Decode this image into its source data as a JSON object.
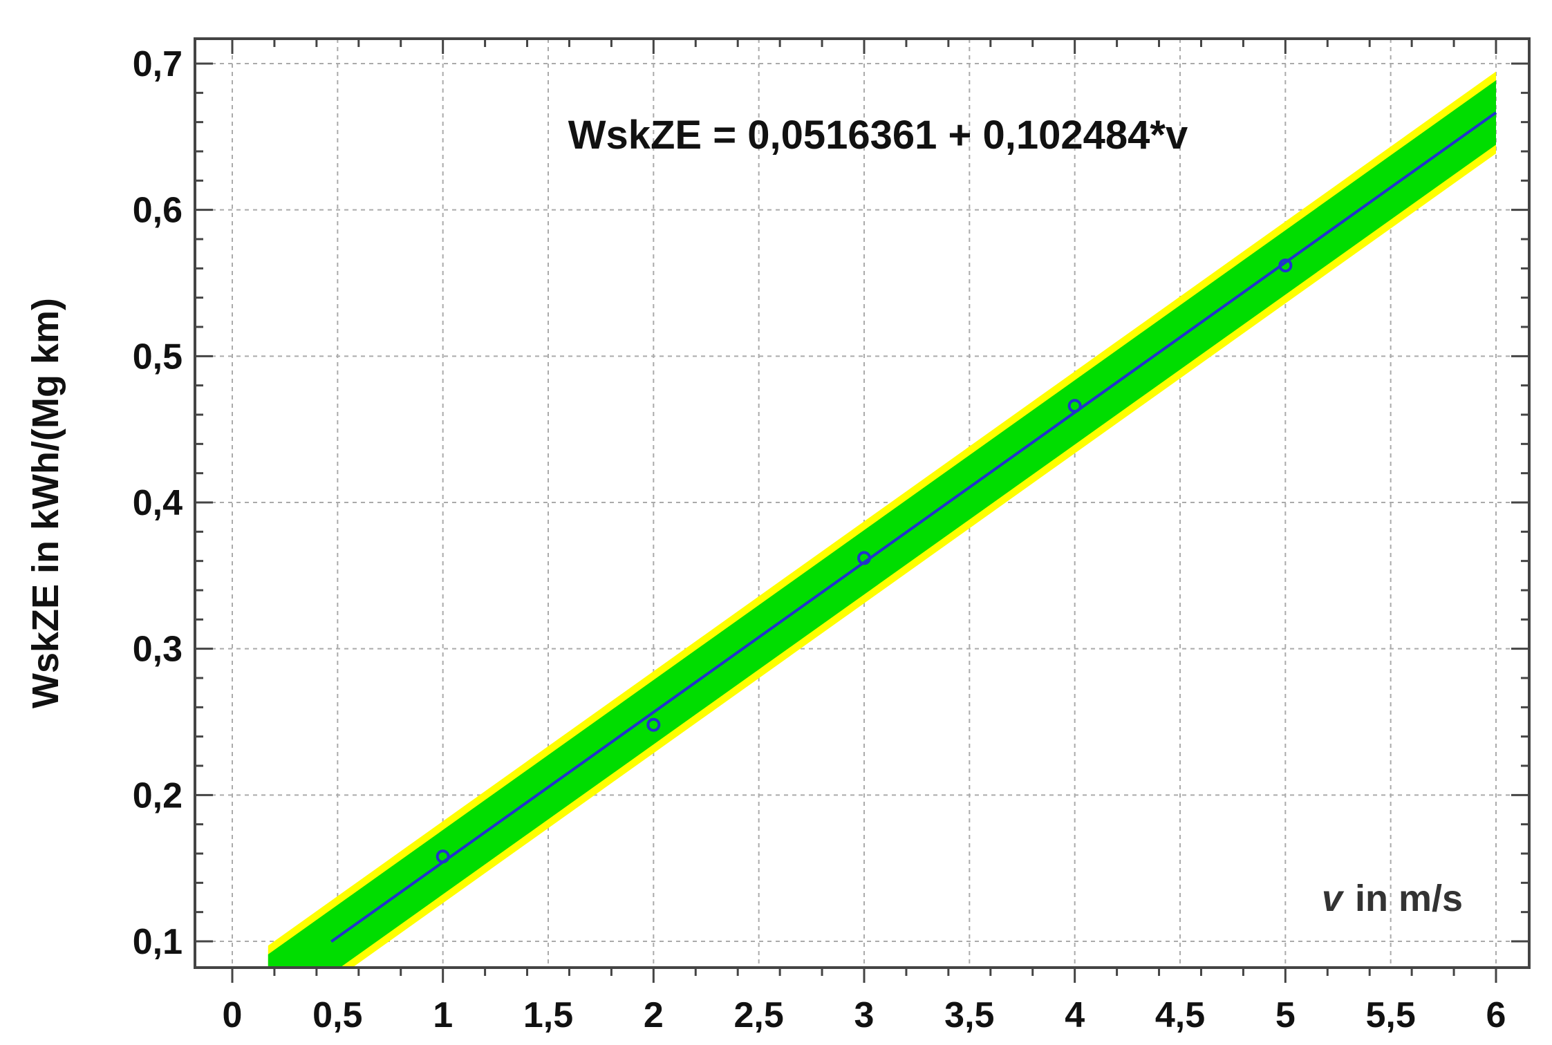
{
  "chart_data": {
    "type": "line",
    "equation": "WskZE = 0,0516361 + 0,102484*v",
    "xlabel_var": "v",
    "xlabel_unit": "in  m/s",
    "ylabel": "WskZE in kWh/(Mg km)",
    "xlim": [
      0,
      6
    ],
    "ylim": [
      0.1,
      0.7
    ],
    "x_ticks": [
      0,
      0.5,
      1,
      1.5,
      2,
      2.5,
      3,
      3.5,
      4,
      4.5,
      5,
      5.5,
      6
    ],
    "x_tick_labels": [
      "0",
      "0,5",
      "1",
      "1,5",
      "2",
      "2,5",
      "3",
      "3,5",
      "4",
      "4,5",
      "5",
      "5,5",
      "6"
    ],
    "y_ticks": [
      0.1,
      0.2,
      0.3,
      0.4,
      0.5,
      0.6,
      0.7
    ],
    "y_tick_labels": [
      "0,1",
      "0,2",
      "0,3",
      "0,4",
      "0,5",
      "0,6",
      "0,7"
    ],
    "grid": true,
    "fit": {
      "intercept": 0.0516361,
      "slope": 0.102484,
      "x_range": [
        0.47,
        6
      ],
      "confidence_halfwidth": 0.022,
      "prediction_halfwidth": 0.028
    },
    "series": [
      {
        "x": [
          1,
          2,
          3,
          4,
          5
        ],
        "y": [
          0.158,
          0.248,
          0.362,
          0.466,
          0.562
        ]
      }
    ],
    "colors": {
      "fit_line": "#2233cc",
      "confidence_band": "#00dd00",
      "prediction_band": "#ffff00",
      "points": "#2233cc",
      "grid": "#aaaaaa",
      "frame": "#444444"
    }
  }
}
